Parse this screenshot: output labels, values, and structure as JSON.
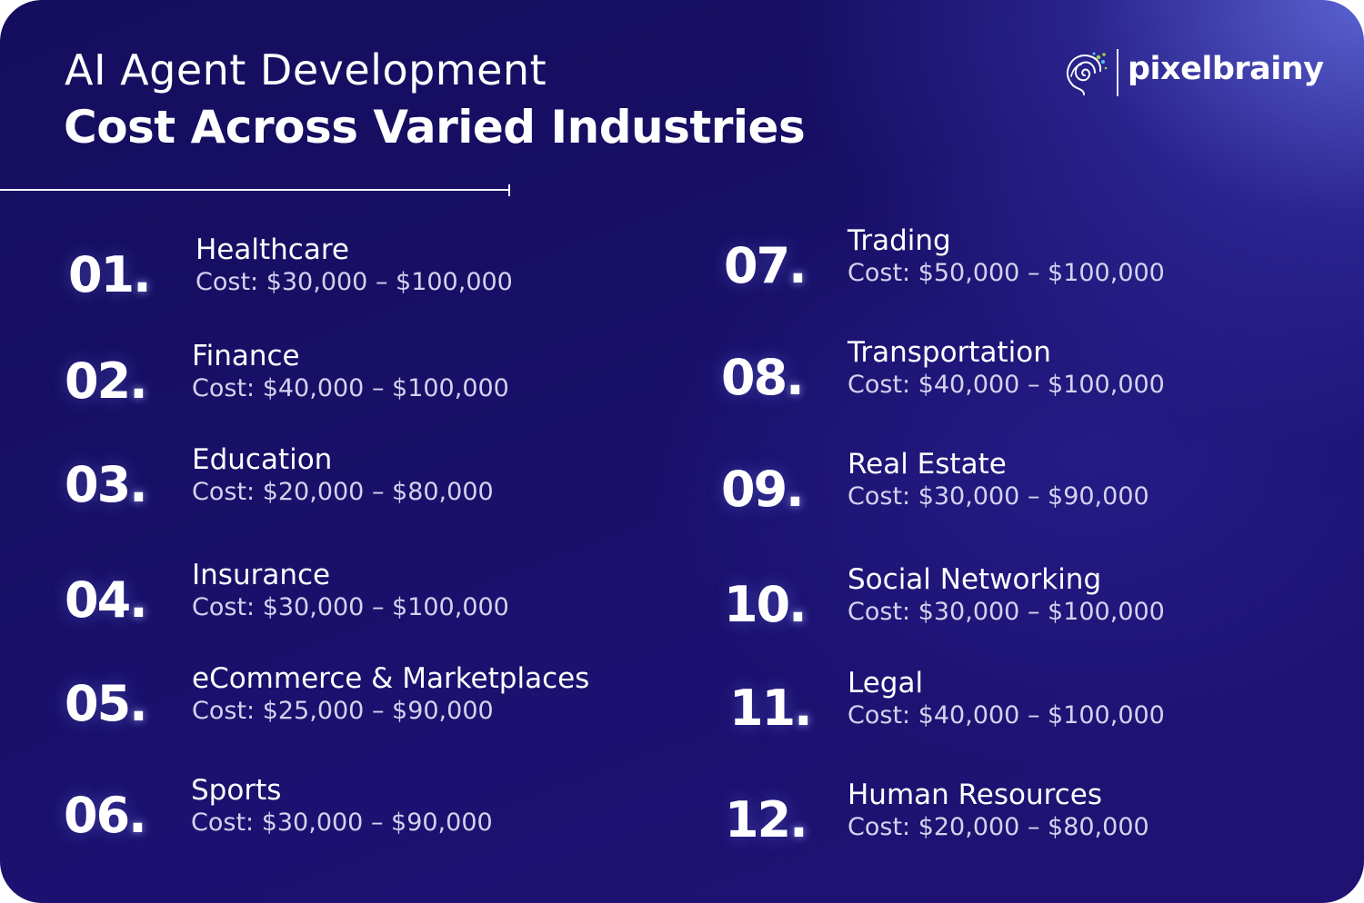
{
  "header": {
    "title_line1": "AI Agent Development",
    "title_line2": "Cost Across Varied Industries"
  },
  "logo": {
    "text": "pixelbrainy",
    "icon": "brain-spiral-icon",
    "accent_colors": [
      "#9bd14b",
      "#4fc3f7"
    ]
  },
  "colors": {
    "background_dark": "#150e5e",
    "background_light": "#5c66d6",
    "text": "#ffffff",
    "cost_text": "#d4d2ee"
  },
  "industries": [
    {
      "number": "01",
      "name": "Healthcare",
      "cost": "Cost: $30,000 – $100,000"
    },
    {
      "number": "02",
      "name": "Finance",
      "cost": "Cost: $40,000 – $100,000"
    },
    {
      "number": "03",
      "name": "Education",
      "cost": "Cost: $20,000 – $80,000"
    },
    {
      "number": "04",
      "name": "Insurance",
      "cost": "Cost: $30,000 – $100,000"
    },
    {
      "number": "05",
      "name": "eCommerce & Marketplaces",
      "cost": "Cost: $25,000 – $90,000"
    },
    {
      "number": "06",
      "name": "Sports",
      "cost": "Cost: $30,000 – $90,000"
    },
    {
      "number": "07",
      "name": "Trading",
      "cost": "Cost: $50,000 – $100,000"
    },
    {
      "number": "08",
      "name": "Transportation",
      "cost": "Cost: $40,000 – $100,000"
    },
    {
      "number": "09",
      "name": "Real Estate",
      "cost": "Cost: $30,000 – $90,000"
    },
    {
      "number": "10",
      "name": "Social Networking",
      "cost": "Cost: $30,000 – $100,000"
    },
    {
      "number": "11",
      "name": "Legal",
      "cost": "Cost: $40,000 – $100,000"
    },
    {
      "number": "12",
      "name": "Human Resources",
      "cost": "Cost: $20,000 – $80,000"
    }
  ]
}
